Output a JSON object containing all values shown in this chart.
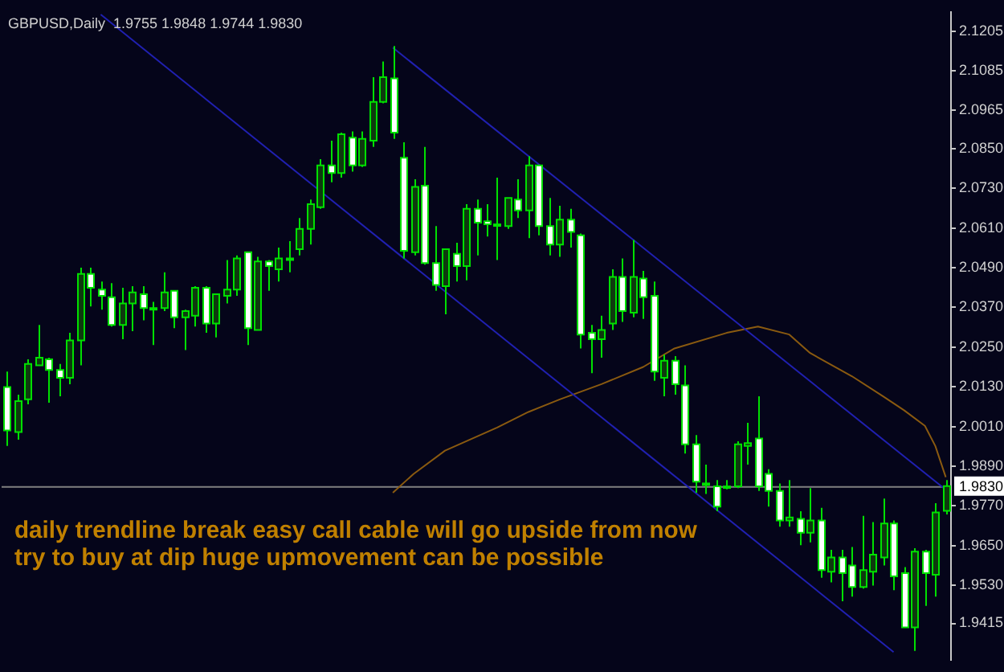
{
  "chart_data": {
    "type": "candlestick",
    "title": "GBPUSD,Daily  1.9755 1.9848 1.9744 1.9830",
    "annotations": [
      "daily trendline break easy call cable will go upside from now",
      "try to buy at dip huge upmovement can be possible"
    ],
    "colors": [
      "#ffffff",
      "#0e3a0e",
      "#0e3a0e",
      "#0e3a0e",
      "#ffffff",
      "#ffffff",
      "#0e3a0e",
      "#0e3a0e",
      "#ffffff",
      "#ffffff",
      "#ffffff",
      "#0e3a0e",
      "#0e3a0e",
      "#ffffff",
      "#0e3a0e",
      "#0e3a0e",
      "#ffffff",
      "#0e3a0e",
      "#0e3a0e",
      "#ffffff",
      "#0e3a0e",
      "#0e3a0e",
      "#0e3a0e",
      "#ffffff",
      "#0e3a0e",
      "#ffffff",
      "#0e3a0e",
      "#0e3a0e",
      "#0e3a0e",
      "#0e3a0e",
      "#0e3a0e",
      "#ffffff",
      "#0e3a0e",
      "#ffffff",
      "#0e3a0e",
      "#0e3a0e",
      "#0e3a0e",
      "#ffffff",
      "#ffffff",
      "#0e3a0e",
      "#ffffff",
      "#ffffff",
      "#0e3a0e",
      "#ffffff",
      "#0e3a0e",
      "#ffffff",
      "#ffffff",
      "#0e3a0e",
      "#0e3a0e",
      "#ffffff",
      "#0e3a0e",
      "#ffffff",
      "#ffffff",
      "#0e3a0e",
      "#ffffff",
      "#ffffff",
      "#ffffff",
      "#0e3a0e",
      "#0e3a0e",
      "#ffffff",
      "#0e3a0e",
      "#ffffff",
      "#ffffff",
      "#0e3a0e",
      "#ffffff",
      "#ffffff",
      "#ffffff",
      "#0e3a0e",
      "#ffffff",
      "#0e3a0e",
      "#0e3a0e",
      "#0e3a0e",
      "#ffffff",
      "#ffffff",
      "#ffffff",
      "#0e3a0e",
      "#ffffff",
      "#0e3a0e",
      "#ffffff",
      "#0e3a0e",
      "#ffffff",
      "#ffffff",
      "#0e3a0e",
      "#0e3a0e",
      "#0e3a0e",
      "#ffffff",
      "#ffffff",
      "#0e3a0e",
      "#ffffff",
      "#0e3a0e",
      "#0e3a0e"
    ],
    "categories": [
      null,
      null,
      null,
      null,
      null,
      null,
      null,
      null,
      null,
      null,
      null,
      null,
      null,
      null,
      null,
      null,
      null,
      null,
      null,
      null,
      null,
      null,
      null,
      null,
      null,
      null,
      null,
      null,
      null,
      null,
      null,
      null,
      null,
      null,
      null,
      null,
      null,
      null,
      null,
      null,
      null,
      null,
      null,
      null,
      null,
      null,
      null,
      null,
      null,
      null,
      null,
      null,
      null,
      null,
      null,
      null,
      null,
      null,
      null,
      null,
      null,
      null,
      null,
      null,
      null,
      null,
      null,
      null,
      null,
      null,
      null,
      null,
      null,
      null,
      null,
      null,
      null,
      null,
      null,
      null,
      null,
      null,
      null,
      null,
      null,
      null,
      null,
      null,
      null,
      null,
      null
    ],
    "ohlc": [
      [
        2.0129,
        2.0176,
        1.9951,
        1.9998
      ],
      [
        1.9993,
        2.0106,
        1.997,
        2.0087
      ],
      [
        2.0092,
        2.0213,
        2.0077,
        2.0199
      ],
      [
        2.0195,
        2.0317,
        2.0195,
        2.0218
      ],
      [
        2.0213,
        2.0218,
        2.0082,
        2.0181
      ],
      [
        2.0181,
        2.0199,
        2.0101,
        2.0157
      ],
      [
        2.0157,
        2.0293,
        2.0138,
        2.027
      ],
      [
        2.027,
        2.049,
        2.0195,
        2.0471
      ],
      [
        2.0471,
        2.049,
        2.0373,
        2.0429
      ],
      [
        2.0424,
        2.0448,
        2.0363,
        2.0405
      ],
      [
        2.0401,
        2.0443,
        2.0312,
        2.0317
      ],
      [
        2.0317,
        2.0429,
        2.0274,
        2.0382
      ],
      [
        2.0382,
        2.0434,
        2.0298,
        2.0415
      ],
      [
        2.041,
        2.0434,
        2.0331,
        2.0368
      ],
      [
        2.0368,
        2.0387,
        2.0256,
        2.0368
      ],
      [
        2.0368,
        2.0476,
        2.0359,
        2.0415
      ],
      [
        2.042,
        2.042,
        2.0307,
        2.034
      ],
      [
        2.034,
        2.0363,
        2.0241,
        2.0359
      ],
      [
        2.0345,
        2.0434,
        2.0312,
        2.0429
      ],
      [
        2.0429,
        2.0434,
        2.0293,
        2.0321
      ],
      [
        2.0321,
        2.041,
        2.0279,
        2.041
      ],
      [
        2.0405,
        2.0513,
        2.0382,
        2.0424
      ],
      [
        2.0424,
        2.0527,
        2.0405,
        2.0518
      ],
      [
        2.0537,
        2.0537,
        2.0256,
        2.0307
      ],
      [
        2.0302,
        2.0523,
        2.0302,
        2.0509
      ],
      [
        2.0509,
        2.0513,
        2.042,
        2.0495
      ],
      [
        2.0485,
        2.0551,
        2.0448,
        2.0518
      ],
      [
        2.0518,
        2.057,
        2.0476,
        2.0518
      ],
      [
        2.0546,
        2.064,
        2.0527,
        2.0607
      ],
      [
        2.0607,
        2.0696,
        2.056,
        2.0682
      ],
      [
        2.0673,
        2.0818,
        2.0668,
        2.0799
      ],
      [
        2.0799,
        2.0874,
        2.0748,
        2.0776
      ],
      [
        2.0776,
        2.0898,
        2.0762,
        2.0893
      ],
      [
        2.0883,
        2.0902,
        2.078,
        2.0799
      ],
      [
        2.0799,
        2.0902,
        2.0794,
        2.0879
      ],
      [
        2.0874,
        2.1066,
        2.0855,
        2.0991
      ],
      [
        2.0991,
        2.1113,
        2.0987,
        2.1066
      ],
      [
        2.1062,
        2.116,
        2.0879,
        2.0898
      ],
      [
        2.0822,
        2.0869,
        2.0518,
        2.0541
      ],
      [
        2.0537,
        2.0757,
        2.0527,
        2.0734
      ],
      [
        2.0738,
        2.0855,
        2.0499,
        2.0504
      ],
      [
        2.0504,
        2.0616,
        2.042,
        2.0438
      ],
      [
        2.0434,
        2.0546,
        2.0349,
        2.0546
      ],
      [
        2.0532,
        2.0565,
        2.0448,
        2.0495
      ],
      [
        2.0495,
        2.0682,
        2.0452,
        2.0668
      ],
      [
        2.0668,
        2.0696,
        2.0527,
        2.0626
      ],
      [
        2.063,
        2.0682,
        2.0584,
        2.0621
      ],
      [
        2.0621,
        2.0762,
        2.0513,
        2.0621
      ],
      [
        2.0616,
        2.0701,
        2.0607,
        2.0701
      ],
      [
        2.0696,
        2.0757,
        2.064,
        2.0663
      ],
      [
        2.0663,
        2.0827,
        2.0579,
        2.0799
      ],
      [
        2.0799,
        2.0799,
        2.0588,
        2.0616
      ],
      [
        2.0616,
        2.0701,
        2.0527,
        2.056
      ],
      [
        2.056,
        2.0677,
        2.0523,
        2.0635
      ],
      [
        2.0635,
        2.0668,
        2.0551,
        2.0598
      ],
      [
        2.0588,
        2.0593,
        2.0246,
        2.0288
      ],
      [
        2.0293,
        2.0317,
        2.0171,
        2.0274
      ],
      [
        2.0274,
        2.0345,
        2.0218,
        2.0302
      ],
      [
        2.0321,
        2.0485,
        2.0302,
        2.0462
      ],
      [
        2.0462,
        2.0518,
        2.0326,
        2.0359
      ],
      [
        2.0354,
        2.0574,
        2.034,
        2.0462
      ],
      [
        2.0457,
        2.048,
        2.0335,
        2.0401
      ],
      [
        2.0405,
        2.0448,
        2.0148,
        2.0176
      ],
      [
        2.0157,
        2.0227,
        2.0101,
        2.0209
      ],
      [
        2.0209,
        2.0223,
        2.0106,
        2.0138
      ],
      [
        2.0134,
        2.0195,
        1.9928,
        1.9956
      ],
      [
        1.9956,
        1.9984,
        1.981,
        1.9843
      ],
      [
        1.9838,
        1.9895,
        1.9806,
        1.9838
      ],
      [
        1.9829,
        1.9848,
        1.9754,
        1.9768
      ],
      [
        1.9829,
        1.9848,
        1.982,
        1.9829
      ],
      [
        1.9829,
        1.9965,
        1.9824,
        1.9956
      ],
      [
        1.9951,
        2.0021,
        1.9895,
        1.996
      ],
      [
        1.9974,
        2.0101,
        1.9815,
        1.9829
      ],
      [
        1.9867,
        1.9881,
        1.9768,
        1.9815
      ],
      [
        1.9815,
        1.9838,
        1.9707,
        1.9726
      ],
      [
        1.9726,
        1.9848,
        1.9707,
        1.9735
      ],
      [
        1.9731,
        1.9754,
        1.9651,
        1.9689
      ],
      [
        1.9689,
        1.9824,
        1.966,
        1.9726
      ],
      [
        1.9726,
        1.9764,
        1.9553,
        1.9576
      ],
      [
        1.9571,
        1.9637,
        1.9539,
        1.9614
      ],
      [
        1.9614,
        1.9637,
        1.9482,
        1.9567
      ],
      [
        1.959,
        1.9646,
        1.9496,
        1.9525
      ],
      [
        1.9525,
        1.974,
        1.952,
        1.9576
      ],
      [
        1.9571,
        1.9721,
        1.9529,
        1.9623
      ],
      [
        1.9614,
        1.9792,
        1.959,
        1.9717
      ],
      [
        1.9717,
        1.9726,
        1.9515,
        1.9557
      ],
      [
        1.9567,
        1.9585,
        1.9403,
        1.9403
      ],
      [
        1.9403,
        1.9642,
        1.9332,
        1.9632
      ],
      [
        1.9632,
        1.9637,
        1.9468,
        1.9567
      ],
      [
        1.9562,
        1.9778,
        1.9496,
        1.975
      ],
      [
        1.9755,
        1.9848,
        1.9744,
        1.983
      ]
    ],
    "series": [
      {
        "type": "line",
        "color": "#2020b0",
        "values": [
          null,
          null,
          null,
          null,
          null,
          null,
          null,
          null,
          null,
          null,
          null,
          null,
          null,
          null,
          null,
          null,
          null,
          null,
          null,
          null,
          null,
          null,
          null,
          null,
          null,
          null,
          null,
          null,
          null,
          null,
          null,
          null,
          null,
          null,
          null,
          null,
          null,
          2.1155,
          null,
          null,
          null,
          null,
          null,
          null,
          null,
          null,
          null,
          null,
          null,
          null,
          null,
          null,
          null,
          null,
          null,
          null,
          null,
          null,
          null,
          null,
          null,
          null,
          null,
          null,
          null,
          null,
          null,
          null,
          null,
          null,
          null,
          null,
          null,
          null,
          null,
          null,
          null,
          null,
          null,
          null,
          null,
          null,
          null,
          null,
          null,
          null,
          null,
          null,
          null,
          null,
          1.9819
        ]
      },
      {
        "type": "line",
        "color": "#2020b0",
        "values": [
          null,
          null,
          null,
          null,
          null,
          null,
          null,
          null,
          null,
          2.1255,
          null,
          null,
          null,
          null,
          null,
          null,
          null,
          null,
          null,
          null,
          null,
          null,
          null,
          null,
          null,
          null,
          null,
          null,
          null,
          null,
          null,
          null,
          null,
          null,
          null,
          null,
          null,
          null,
          null,
          null,
          null,
          null,
          null,
          null,
          null,
          null,
          null,
          null,
          null,
          null,
          null,
          null,
          null,
          null,
          null,
          null,
          null,
          null,
          null,
          null,
          null,
          null,
          null,
          null,
          null,
          null,
          null,
          null,
          null,
          null,
          null,
          null,
          null,
          null,
          null,
          null,
          null,
          null,
          null,
          null,
          null,
          null,
          null,
          null,
          null,
          1.9328,
          null,
          null,
          null,
          null,
          null
        ]
      },
      {
        "type": "line",
        "color": "#8a5a10",
        "values": [
          null,
          null,
          null,
          null,
          null,
          null,
          null,
          null,
          null,
          null,
          null,
          null,
          null,
          null,
          null,
          null,
          null,
          null,
          null,
          null,
          null,
          null,
          null,
          null,
          null,
          null,
          null,
          null,
          null,
          null,
          null,
          null,
          null,
          null,
          null,
          null,
          null,
          1.981,
          null,
          1.9867,
          null,
          null,
          1.9937,
          null,
          null,
          null,
          null,
          2.0007,
          null,
          null,
          2.0054,
          null,
          null,
          2.0092,
          null,
          null,
          null,
          2.0138,
          null,
          null,
          null,
          2.019,
          null,
          null,
          2.0246,
          null,
          null,
          null,
          null,
          2.0293,
          null,
          null,
          2.0312,
          null,
          null,
          2.0288,
          null,
          2.0232,
          null,
          null,
          null,
          2.0162,
          null,
          null,
          2.0101,
          null,
          2.0059,
          null,
          2.0012,
          1.9951,
          1.9857
        ]
      }
    ],
    "ref_lines": [
      {
        "axis": "y",
        "value": 1.983,
        "label": "1.9830",
        "color": "#808080"
      }
    ],
    "ylim": [
      1.9304,
      2.1263
    ],
    "yticks": [
      {
        "value": 1.9415,
        "label": "1.9415"
      },
      {
        "value": 1.953,
        "label": "1.9530"
      },
      {
        "value": 1.965,
        "label": "1.9650"
      },
      {
        "value": 1.977,
        "label": "1.9770"
      },
      {
        "value": 1.989,
        "label": "1.9890"
      },
      {
        "value": 2.001,
        "label": "2.0010"
      },
      {
        "value": 2.013,
        "label": "2.0130"
      },
      {
        "value": 2.025,
        "label": "2.0250"
      },
      {
        "value": 2.037,
        "label": "2.0370"
      },
      {
        "value": 2.049,
        "label": "2.0490"
      },
      {
        "value": 2.061,
        "label": "2.0610"
      },
      {
        "value": 2.073,
        "label": "2.0730"
      },
      {
        "value": 2.085,
        "label": "2.0850"
      },
      {
        "value": 2.0965,
        "label": "2.0965"
      },
      {
        "value": 2.1085,
        "label": "2.1085"
      },
      {
        "value": 2.1205,
        "label": "2.1205"
      }
    ],
    "tick_labels": "y",
    "grid": false,
    "legend": false
  }
}
